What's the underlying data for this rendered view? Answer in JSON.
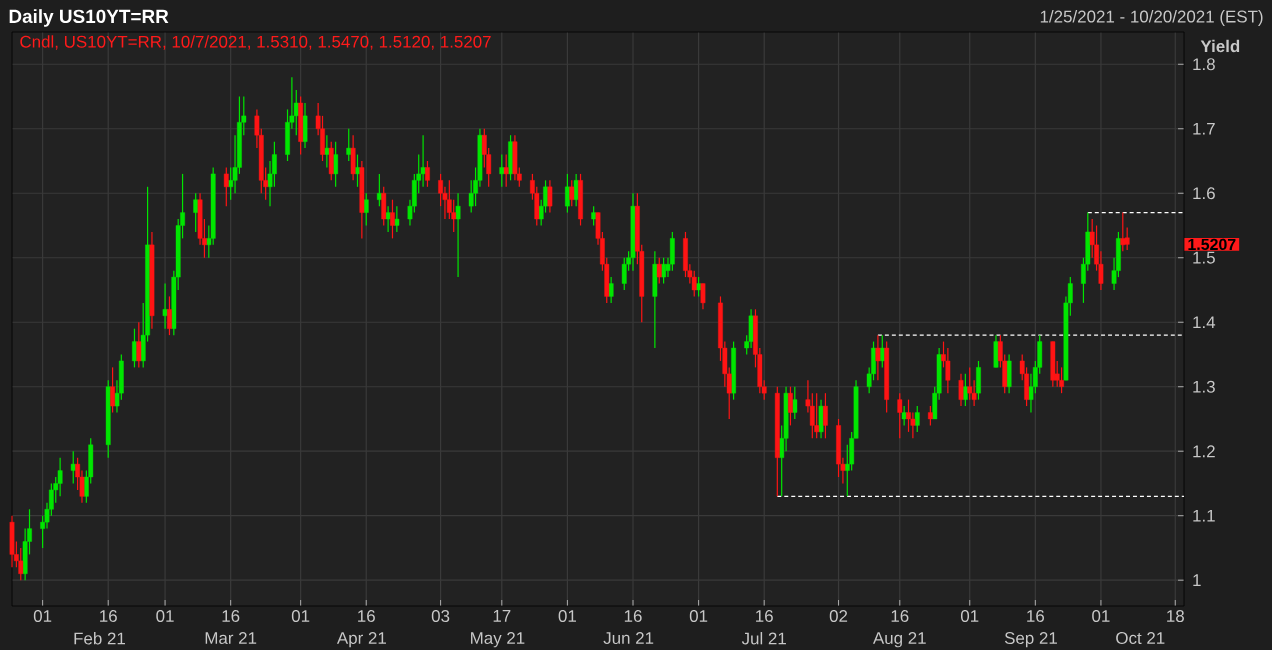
{
  "chart_data": {
    "type": "candlestick",
    "title": "Daily US10YT=RR",
    "subtitle": "1/25/2021 - 10/20/2021 (EST)",
    "ylabel": "Yield",
    "annotations": [
      "Cndl, US10YT=RR, 10/7/2021, 1.5310, 1.5470, 1.5120, 1.5207",
      "1.5207"
    ],
    "xlim": [
      "2021-01-25",
      "2021-10-20"
    ],
    "xticks": [
      {
        "value": "2021-02-01",
        "label": "01"
      },
      {
        "value": "2021-02-16",
        "label": "16"
      },
      {
        "value": "2021-03-01",
        "label": "01"
      },
      {
        "value": "2021-03-16",
        "label": "16"
      },
      {
        "value": "2021-04-01",
        "label": "01"
      },
      {
        "value": "2021-04-16",
        "label": "16"
      },
      {
        "value": "2021-05-03",
        "label": "03"
      },
      {
        "value": "2021-05-17",
        "label": "17"
      },
      {
        "value": "2021-06-01",
        "label": "01"
      },
      {
        "value": "2021-06-16",
        "label": "16"
      },
      {
        "value": "2021-07-01",
        "label": "01"
      },
      {
        "value": "2021-07-16",
        "label": "16"
      },
      {
        "value": "2021-08-02",
        "label": "02"
      },
      {
        "value": "2021-08-16",
        "label": "16"
      },
      {
        "value": "2021-09-01",
        "label": "01"
      },
      {
        "value": "2021-09-16",
        "label": "16"
      },
      {
        "value": "2021-10-01",
        "label": "01"
      },
      {
        "value": "2021-10-18",
        "label": "18"
      }
    ],
    "x2lim": [
      "2021-01-25",
      "2021-10-20"
    ],
    "x2ticks": [
      {
        "value": "2021-02-14",
        "label": "Feb 21"
      },
      {
        "value": "2021-03-16",
        "label": "Mar 21"
      },
      {
        "value": "2021-04-15",
        "label": "Apr 21"
      },
      {
        "value": "2021-05-16",
        "label": "May 21"
      },
      {
        "value": "2021-06-15",
        "label": "Jun 21"
      },
      {
        "value": "2021-07-16",
        "label": "Jul 21"
      },
      {
        "value": "2021-08-16",
        "label": "Aug 21"
      },
      {
        "value": "2021-09-15",
        "label": "Sep 21"
      },
      {
        "value": "2021-10-10",
        "label": "Oct 21"
      }
    ],
    "ylim": [
      0.96,
      1.85
    ],
    "yticks": [
      1,
      1.1,
      1.2,
      1.3,
      1.4,
      1.5,
      1.6,
      1.7,
      1.8
    ],
    "grid": true,
    "series": [
      {
        "type": "line",
        "color": "#ffffff",
        "line_style": "dashed",
        "x": [
          "2021-07-19",
          "2021-10-20"
        ],
        "values": [
          1.13,
          1.13
        ]
      },
      {
        "type": "line",
        "color": "#ffffff",
        "line_style": "dashed",
        "x": [
          "2021-08-11",
          "2021-10-20"
        ],
        "values": [
          1.38,
          1.38
        ]
      },
      {
        "type": "line",
        "color": "#ffffff",
        "line_style": "dashed",
        "x": [
          "2021-09-28",
          "2021-10-20"
        ],
        "values": [
          1.57,
          1.57
        ]
      },
      {
        "color": "#00e600",
        "x": [
          "2021-01-28",
          "2021-01-29",
          "2021-02-01",
          "2021-02-02",
          "2021-02-03",
          "2021-02-04",
          "2021-02-05",
          "2021-02-08",
          "2021-02-11",
          "2021-02-12",
          "2021-02-16",
          "2021-02-18",
          "2021-02-19",
          "2021-02-22",
          "2021-02-24",
          "2021-02-25",
          "2021-03-01",
          "2021-03-03",
          "2021-03-04",
          "2021-03-05",
          "2021-03-08",
          "2021-03-11",
          "2021-03-12",
          "2021-03-16",
          "2021-03-17",
          "2021-03-18",
          "2021-03-19",
          "2021-03-25",
          "2021-03-26",
          "2021-03-29",
          "2021-03-30",
          "2021-03-31",
          "2021-04-02",
          "2021-04-07",
          "2021-04-09",
          "2021-04-12",
          "2021-04-14",
          "2021-04-16",
          "2021-04-19",
          "2021-04-21",
          "2021-04-23",
          "2021-04-26",
          "2021-04-27",
          "2021-04-28",
          "2021-04-29",
          "2021-05-07",
          "2021-05-10",
          "2021-05-11",
          "2021-05-12",
          "2021-05-17",
          "2021-05-19",
          "2021-05-26",
          "2021-05-27",
          "2021-06-01",
          "2021-06-03",
          "2021-06-07",
          "2021-06-11",
          "2021-06-14",
          "2021-06-15",
          "2021-06-16",
          "2021-06-21",
          "2021-06-23",
          "2021-06-24",
          "2021-06-25",
          "2021-07-01",
          "2021-07-09",
          "2021-07-12",
          "2021-07-13",
          "2021-07-20",
          "2021-07-21",
          "2021-07-23",
          "2021-07-29",
          "2021-08-04",
          "2021-08-05",
          "2021-08-06",
          "2021-08-09",
          "2021-08-10",
          "2021-08-12",
          "2021-08-17",
          "2021-08-20",
          "2021-08-24",
          "2021-08-25",
          "2021-08-31",
          "2021-09-03",
          "2021-09-07",
          "2021-09-10",
          "2021-09-15",
          "2021-09-16",
          "2021-09-17",
          "2021-09-23",
          "2021-09-24",
          "2021-09-27",
          "2021-09-28",
          "2021-10-04",
          "2021-10-05"
        ],
        "ohlc": [
          [
            1.01,
            1.08,
            1.0,
            1.06
          ],
          [
            1.06,
            1.11,
            1.04,
            1.08
          ],
          [
            1.08,
            1.1,
            1.05,
            1.09
          ],
          [
            1.09,
            1.12,
            1.08,
            1.11
          ],
          [
            1.11,
            1.15,
            1.1,
            1.14
          ],
          [
            1.14,
            1.16,
            1.12,
            1.15
          ],
          [
            1.15,
            1.19,
            1.13,
            1.17
          ],
          [
            1.17,
            1.2,
            1.15,
            1.18
          ],
          [
            1.13,
            1.17,
            1.12,
            1.16
          ],
          [
            1.16,
            1.22,
            1.15,
            1.21
          ],
          [
            1.21,
            1.31,
            1.19,
            1.3
          ],
          [
            1.27,
            1.31,
            1.26,
            1.29
          ],
          [
            1.29,
            1.35,
            1.28,
            1.34
          ],
          [
            1.34,
            1.39,
            1.33,
            1.37
          ],
          [
            1.34,
            1.43,
            1.33,
            1.38
          ],
          [
            1.38,
            1.61,
            1.37,
            1.52
          ],
          [
            1.41,
            1.46,
            1.39,
            1.42
          ],
          [
            1.39,
            1.48,
            1.38,
            1.47
          ],
          [
            1.47,
            1.56,
            1.45,
            1.55
          ],
          [
            1.55,
            1.63,
            1.53,
            1.57
          ],
          [
            1.57,
            1.6,
            1.54,
            1.59
          ],
          [
            1.52,
            1.55,
            1.5,
            1.53
          ],
          [
            1.53,
            1.64,
            1.52,
            1.63
          ],
          [
            1.61,
            1.64,
            1.59,
            1.62
          ],
          [
            1.62,
            1.69,
            1.6,
            1.64
          ],
          [
            1.64,
            1.75,
            1.63,
            1.71
          ],
          [
            1.71,
            1.75,
            1.69,
            1.72
          ],
          [
            1.61,
            1.65,
            1.58,
            1.63
          ],
          [
            1.63,
            1.68,
            1.61,
            1.66
          ],
          [
            1.66,
            1.73,
            1.65,
            1.71
          ],
          [
            1.71,
            1.78,
            1.7,
            1.72
          ],
          [
            1.72,
            1.76,
            1.69,
            1.74
          ],
          [
            1.68,
            1.74,
            1.67,
            1.72
          ],
          [
            1.66,
            1.69,
            1.64,
            1.67
          ],
          [
            1.63,
            1.68,
            1.61,
            1.66
          ],
          [
            1.66,
            1.7,
            1.65,
            1.67
          ],
          [
            1.63,
            1.66,
            1.61,
            1.64
          ],
          [
            1.57,
            1.6,
            1.55,
            1.59
          ],
          [
            1.59,
            1.63,
            1.58,
            1.6
          ],
          [
            1.56,
            1.58,
            1.54,
            1.57
          ],
          [
            1.55,
            1.58,
            1.54,
            1.56
          ],
          [
            1.56,
            1.59,
            1.55,
            1.58
          ],
          [
            1.58,
            1.63,
            1.57,
            1.62
          ],
          [
            1.62,
            1.66,
            1.6,
            1.63
          ],
          [
            1.63,
            1.69,
            1.61,
            1.64
          ],
          [
            1.56,
            1.6,
            1.47,
            1.58
          ],
          [
            1.58,
            1.62,
            1.57,
            1.6
          ],
          [
            1.6,
            1.64,
            1.58,
            1.62
          ],
          [
            1.62,
            1.7,
            1.61,
            1.69
          ],
          [
            1.63,
            1.66,
            1.61,
            1.64
          ],
          [
            1.63,
            1.69,
            1.62,
            1.68
          ],
          [
            1.56,
            1.59,
            1.55,
            1.58
          ],
          [
            1.58,
            1.62,
            1.57,
            1.61
          ],
          [
            1.58,
            1.63,
            1.57,
            1.61
          ],
          [
            1.59,
            1.63,
            1.58,
            1.62
          ],
          [
            1.56,
            1.58,
            1.55,
            1.57
          ],
          [
            1.44,
            1.47,
            1.43,
            1.46
          ],
          [
            1.46,
            1.5,
            1.45,
            1.49
          ],
          [
            1.49,
            1.51,
            1.48,
            1.5
          ],
          [
            1.5,
            1.6,
            1.48,
            1.58
          ],
          [
            1.44,
            1.51,
            1.36,
            1.49
          ],
          [
            1.47,
            1.5,
            1.46,
            1.49
          ],
          [
            1.48,
            1.5,
            1.47,
            1.49
          ],
          [
            1.49,
            1.54,
            1.48,
            1.53
          ],
          [
            1.45,
            1.47,
            1.44,
            1.46
          ],
          [
            1.29,
            1.37,
            1.28,
            1.36
          ],
          [
            1.36,
            1.38,
            1.35,
            1.37
          ],
          [
            1.37,
            1.42,
            1.36,
            1.41
          ],
          [
            1.19,
            1.24,
            1.13,
            1.22
          ],
          [
            1.22,
            1.3,
            1.2,
            1.29
          ],
          [
            1.26,
            1.3,
            1.25,
            1.28
          ],
          [
            1.23,
            1.28,
            1.22,
            1.27
          ],
          [
            1.17,
            1.21,
            1.13,
            1.18
          ],
          [
            1.18,
            1.23,
            1.17,
            1.22
          ],
          [
            1.22,
            1.31,
            1.22,
            1.3
          ],
          [
            1.3,
            1.33,
            1.29,
            1.32
          ],
          [
            1.32,
            1.37,
            1.31,
            1.36
          ],
          [
            1.34,
            1.38,
            1.33,
            1.36
          ],
          [
            1.25,
            1.27,
            1.24,
            1.26
          ],
          [
            1.24,
            1.27,
            1.23,
            1.26
          ],
          [
            1.25,
            1.3,
            1.25,
            1.29
          ],
          [
            1.29,
            1.36,
            1.28,
            1.35
          ],
          [
            1.28,
            1.32,
            1.27,
            1.3
          ],
          [
            1.29,
            1.34,
            1.28,
            1.33
          ],
          [
            1.33,
            1.38,
            1.33,
            1.37
          ],
          [
            1.3,
            1.35,
            1.29,
            1.34
          ],
          [
            1.28,
            1.32,
            1.26,
            1.3
          ],
          [
            1.3,
            1.34,
            1.29,
            1.33
          ],
          [
            1.33,
            1.38,
            1.32,
            1.37
          ],
          [
            1.31,
            1.44,
            1.31,
            1.43
          ],
          [
            1.43,
            1.47,
            1.41,
            1.46
          ],
          [
            1.46,
            1.5,
            1.43,
            1.49
          ],
          [
            1.49,
            1.57,
            1.48,
            1.54
          ],
          [
            1.46,
            1.5,
            1.45,
            1.48
          ],
          [
            1.48,
            1.54,
            1.47,
            1.53
          ]
        ]
      },
      {
        "color": "#ff1414",
        "x": [
          "2021-01-25",
          "2021-01-26",
          "2021-01-27",
          "2021-02-09",
          "2021-02-10",
          "2021-02-17",
          "2021-02-23",
          "2021-02-26",
          "2021-03-02",
          "2021-03-09",
          "2021-03-10",
          "2021-03-15",
          "2021-03-22",
          "2021-03-23",
          "2021-03-24",
          "2021-04-01",
          "2021-04-05",
          "2021-04-06",
          "2021-04-08",
          "2021-04-13",
          "2021-04-15",
          "2021-04-20",
          "2021-04-22",
          "2021-04-30",
          "2021-05-03",
          "2021-05-04",
          "2021-05-05",
          "2021-05-06",
          "2021-05-13",
          "2021-05-14",
          "2021-05-18",
          "2021-05-20",
          "2021-05-21",
          "2021-05-24",
          "2021-05-25",
          "2021-05-28",
          "2021-06-02",
          "2021-06-04",
          "2021-06-08",
          "2021-06-09",
          "2021-06-10",
          "2021-06-17",
          "2021-06-18",
          "2021-06-22",
          "2021-06-28",
          "2021-06-29",
          "2021-06-30",
          "2021-07-02",
          "2021-07-06",
          "2021-07-07",
          "2021-07-08",
          "2021-07-14",
          "2021-07-15",
          "2021-07-16",
          "2021-07-19",
          "2021-07-22",
          "2021-07-26",
          "2021-07-27",
          "2021-07-28",
          "2021-07-30",
          "2021-08-02",
          "2021-08-03",
          "2021-08-11",
          "2021-08-13",
          "2021-08-16",
          "2021-08-18",
          "2021-08-19",
          "2021-08-23",
          "2021-08-26",
          "2021-08-27",
          "2021-08-30",
          "2021-09-01",
          "2021-09-02",
          "2021-09-08",
          "2021-09-09",
          "2021-09-13",
          "2021-09-14",
          "2021-09-20",
          "2021-09-21",
          "2021-09-22",
          "2021-09-29",
          "2021-09-30",
          "2021-10-01",
          "2021-10-06",
          "2021-10-07"
        ],
        "ohlc": [
          [
            1.09,
            1.1,
            1.02,
            1.04
          ],
          [
            1.04,
            1.06,
            1.02,
            1.03
          ],
          [
            1.03,
            1.05,
            1.0,
            1.01
          ],
          [
            1.18,
            1.19,
            1.14,
            1.16
          ],
          [
            1.16,
            1.17,
            1.12,
            1.13
          ],
          [
            1.3,
            1.33,
            1.26,
            1.27
          ],
          [
            1.37,
            1.4,
            1.33,
            1.34
          ],
          [
            1.52,
            1.54,
            1.39,
            1.41
          ],
          [
            1.42,
            1.44,
            1.38,
            1.39
          ],
          [
            1.59,
            1.6,
            1.52,
            1.53
          ],
          [
            1.53,
            1.56,
            1.5,
            1.52
          ],
          [
            1.63,
            1.64,
            1.58,
            1.61
          ],
          [
            1.72,
            1.73,
            1.67,
            1.69
          ],
          [
            1.69,
            1.7,
            1.6,
            1.62
          ],
          [
            1.62,
            1.64,
            1.59,
            1.61
          ],
          [
            1.74,
            1.75,
            1.66,
            1.68
          ],
          [
            1.72,
            1.74,
            1.69,
            1.7
          ],
          [
            1.7,
            1.72,
            1.65,
            1.66
          ],
          [
            1.67,
            1.68,
            1.62,
            1.63
          ],
          [
            1.67,
            1.69,
            1.62,
            1.63
          ],
          [
            1.64,
            1.65,
            1.53,
            1.57
          ],
          [
            1.6,
            1.61,
            1.55,
            1.56
          ],
          [
            1.57,
            1.59,
            1.53,
            1.55
          ],
          [
            1.64,
            1.65,
            1.61,
            1.62
          ],
          [
            1.62,
            1.63,
            1.58,
            1.6
          ],
          [
            1.6,
            1.61,
            1.56,
            1.59
          ],
          [
            1.59,
            1.62,
            1.56,
            1.57
          ],
          [
            1.57,
            1.59,
            1.54,
            1.56
          ],
          [
            1.69,
            1.7,
            1.64,
            1.66
          ],
          [
            1.66,
            1.67,
            1.61,
            1.63
          ],
          [
            1.64,
            1.66,
            1.61,
            1.63
          ],
          [
            1.68,
            1.69,
            1.62,
            1.63
          ],
          [
            1.63,
            1.64,
            1.61,
            1.62
          ],
          [
            1.62,
            1.63,
            1.59,
            1.6
          ],
          [
            1.6,
            1.61,
            1.55,
            1.56
          ],
          [
            1.61,
            1.62,
            1.57,
            1.58
          ],
          [
            1.61,
            1.62,
            1.58,
            1.59
          ],
          [
            1.62,
            1.63,
            1.55,
            1.56
          ],
          [
            1.57,
            1.57,
            1.52,
            1.53
          ],
          [
            1.53,
            1.54,
            1.48,
            1.49
          ],
          [
            1.49,
            1.5,
            1.43,
            1.44
          ],
          [
            1.58,
            1.6,
            1.49,
            1.51
          ],
          [
            1.51,
            1.52,
            1.4,
            1.44
          ],
          [
            1.49,
            1.5,
            1.46,
            1.47
          ],
          [
            1.53,
            1.54,
            1.47,
            1.48
          ],
          [
            1.48,
            1.49,
            1.46,
            1.47
          ],
          [
            1.47,
            1.48,
            1.44,
            1.45
          ],
          [
            1.46,
            1.46,
            1.42,
            1.43
          ],
          [
            1.43,
            1.44,
            1.34,
            1.36
          ],
          [
            1.36,
            1.37,
            1.3,
            1.32
          ],
          [
            1.32,
            1.33,
            1.25,
            1.29
          ],
          [
            1.41,
            1.42,
            1.33,
            1.35
          ],
          [
            1.35,
            1.36,
            1.29,
            1.3
          ],
          [
            1.3,
            1.31,
            1.28,
            1.29
          ],
          [
            1.29,
            1.3,
            1.13,
            1.19
          ],
          [
            1.29,
            1.3,
            1.24,
            1.26
          ],
          [
            1.28,
            1.31,
            1.26,
            1.27
          ],
          [
            1.27,
            1.29,
            1.22,
            1.24
          ],
          [
            1.24,
            1.29,
            1.22,
            1.23
          ],
          [
            1.27,
            1.29,
            1.22,
            1.24
          ],
          [
            1.24,
            1.25,
            1.16,
            1.18
          ],
          [
            1.18,
            1.19,
            1.15,
            1.17
          ],
          [
            1.36,
            1.38,
            1.31,
            1.34
          ],
          [
            1.36,
            1.37,
            1.26,
            1.28
          ],
          [
            1.28,
            1.29,
            1.22,
            1.26
          ],
          [
            1.26,
            1.28,
            1.23,
            1.25
          ],
          [
            1.25,
            1.26,
            1.22,
            1.24
          ],
          [
            1.26,
            1.27,
            1.24,
            1.25
          ],
          [
            1.35,
            1.37,
            1.33,
            1.34
          ],
          [
            1.34,
            1.36,
            1.29,
            1.31
          ],
          [
            1.31,
            1.32,
            1.27,
            1.28
          ],
          [
            1.3,
            1.33,
            1.28,
            1.29
          ],
          [
            1.29,
            1.31,
            1.27,
            1.28
          ],
          [
            1.37,
            1.38,
            1.33,
            1.34
          ],
          [
            1.34,
            1.35,
            1.29,
            1.3
          ],
          [
            1.34,
            1.35,
            1.31,
            1.32
          ],
          [
            1.32,
            1.33,
            1.27,
            1.28
          ],
          [
            1.37,
            1.37,
            1.3,
            1.31
          ],
          [
            1.32,
            1.34,
            1.3,
            1.31
          ],
          [
            1.31,
            1.33,
            1.29,
            1.3
          ],
          [
            1.54,
            1.56,
            1.5,
            1.52
          ],
          [
            1.52,
            1.55,
            1.48,
            1.49
          ],
          [
            1.49,
            1.51,
            1.45,
            1.46
          ],
          [
            1.53,
            1.57,
            1.51,
            1.52
          ],
          [
            1.531,
            1.547,
            1.512,
            1.5207
          ]
        ]
      }
    ]
  }
}
